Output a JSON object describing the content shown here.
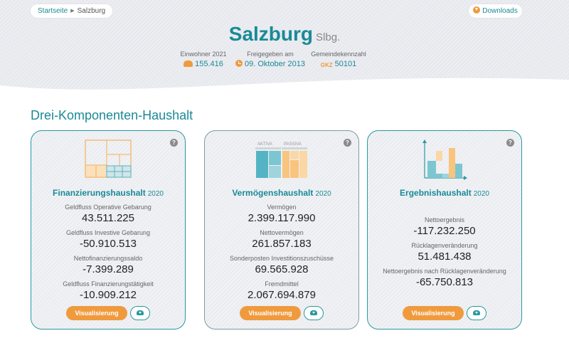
{
  "breadcrumb": {
    "home": "Startseite",
    "current": "Salzburg"
  },
  "header": {
    "downloads_label": "Downloads",
    "city": "Salzburg",
    "state": "Slbg.",
    "meta": [
      {
        "label": "Einwohner 2021",
        "value": "155.416",
        "icon": "people-icon"
      },
      {
        "label": "Freigegeben am",
        "value": "09. Oktober 2013",
        "icon": "clock-icon"
      },
      {
        "label": "Gemeindekennzahl",
        "value": "50101",
        "icon_text": "GKZ"
      }
    ]
  },
  "section_title": "Drei-Komponenten-Haushalt",
  "cards": [
    {
      "title": "Finanzierungshaushalt",
      "year": "2020",
      "kpis": [
        {
          "label": "Geldfluss Operative Gebarung",
          "value": "43.511.225"
        },
        {
          "label": "Geldfluss Investive Gebarung",
          "value": "-50.910.513"
        },
        {
          "label": "Nettofinanzierungssaldo",
          "value": "-7.399.289"
        },
        {
          "label": "Geldfluss Finanzierungstätigkeit",
          "value": "-10.909.212"
        }
      ],
      "button_label": "Visualisierung"
    },
    {
      "title": "Vermögenshaushalt",
      "year": "2020",
      "illus_labels": {
        "left": "AKTIVA",
        "right": "PASSIVA"
      },
      "kpis": [
        {
          "label": "Vermögen",
          "value": "2.399.117.990"
        },
        {
          "label": "Nettovermögen",
          "value": "261.857.183"
        },
        {
          "label": "Sonderposten Investitionszuschüsse",
          "value": "69.565.928"
        },
        {
          "label": "Fremdmittel",
          "value": "2.067.694.879"
        }
      ],
      "button_label": "Visualisierung"
    },
    {
      "title": "Ergebnishaushalt",
      "year": "2020",
      "kpis": [
        {
          "label": "Nettoergebnis",
          "value": "-117.232.250"
        },
        {
          "label": "Rücklagenveränderung",
          "value": "51.481.438"
        },
        {
          "label": "Nettoergebnis nach Rücklagenveränderung",
          "value": "-65.750.813"
        }
      ],
      "button_label": "Visualisierung"
    }
  ],
  "help_label": "?",
  "colors": {
    "accent": "#1a8a97",
    "orange": "#f09a3e"
  }
}
